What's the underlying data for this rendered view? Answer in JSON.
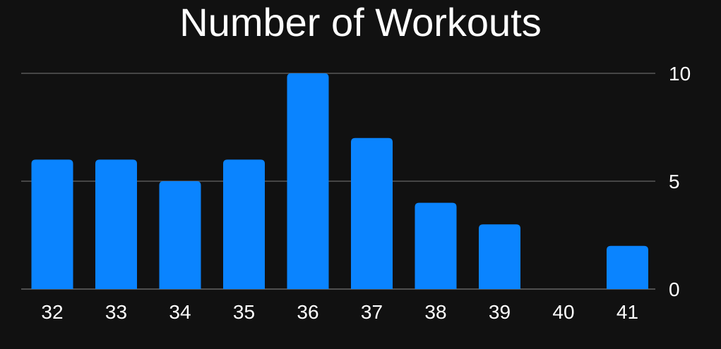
{
  "chart_data": {
    "type": "bar",
    "title": "Number of Workouts",
    "xlabel": "",
    "ylabel": "",
    "categories": [
      "32",
      "33",
      "34",
      "35",
      "36",
      "37",
      "38",
      "39",
      "40",
      "41"
    ],
    "values": [
      6,
      6,
      5,
      6,
      10,
      7,
      4,
      3,
      0,
      2
    ],
    "ylim": [
      0,
      10
    ],
    "yticks": [
      "0",
      "5",
      "10"
    ],
    "y_axis_side": "right",
    "grid": true,
    "legend": "none",
    "colors": {
      "background": "#111111",
      "bar": "#0A84FF",
      "grid": "#666666",
      "text": "#ffffff"
    }
  }
}
